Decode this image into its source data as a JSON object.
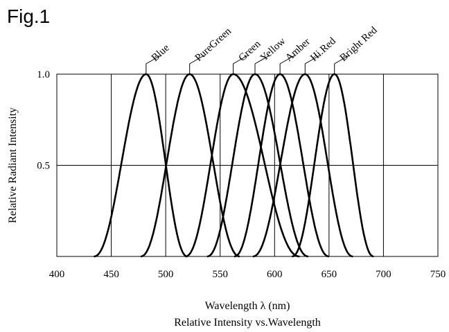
{
  "figure_label": "Fig.1",
  "chart_data": {
    "type": "line",
    "title": "Relative Intensity vs.Wavelength",
    "xlabel": "Wavelength λ (nm)",
    "ylabel": "Relative Radiant Intensity",
    "xlim": [
      400,
      750
    ],
    "ylim": [
      0,
      1.0
    ],
    "x_ticks": [
      400,
      450,
      500,
      550,
      600,
      650,
      700,
      750
    ],
    "y_ticks": [
      0.5,
      1.0
    ],
    "y_tick_labels": [
      "0.5",
      "1.0"
    ],
    "grid": true,
    "line_color": "#000000",
    "series": [
      {
        "name": "Blue",
        "peak": 482,
        "min": 434,
        "max": 520
      },
      {
        "name": "PureGreen",
        "peak": 522,
        "min": 477,
        "max": 568
      },
      {
        "name": "Green",
        "peak": 562,
        "min": 518,
        "max": 623
      },
      {
        "name": "Yellow",
        "peak": 582,
        "min": 538,
        "max": 631
      },
      {
        "name": "Amber",
        "peak": 605,
        "min": 563,
        "max": 650
      },
      {
        "name": "Hi.Red",
        "peak": 628,
        "min": 580,
        "max": 672
      },
      {
        "name": "Bright Red",
        "peak": 655,
        "min": 616,
        "max": 691
      }
    ]
  }
}
